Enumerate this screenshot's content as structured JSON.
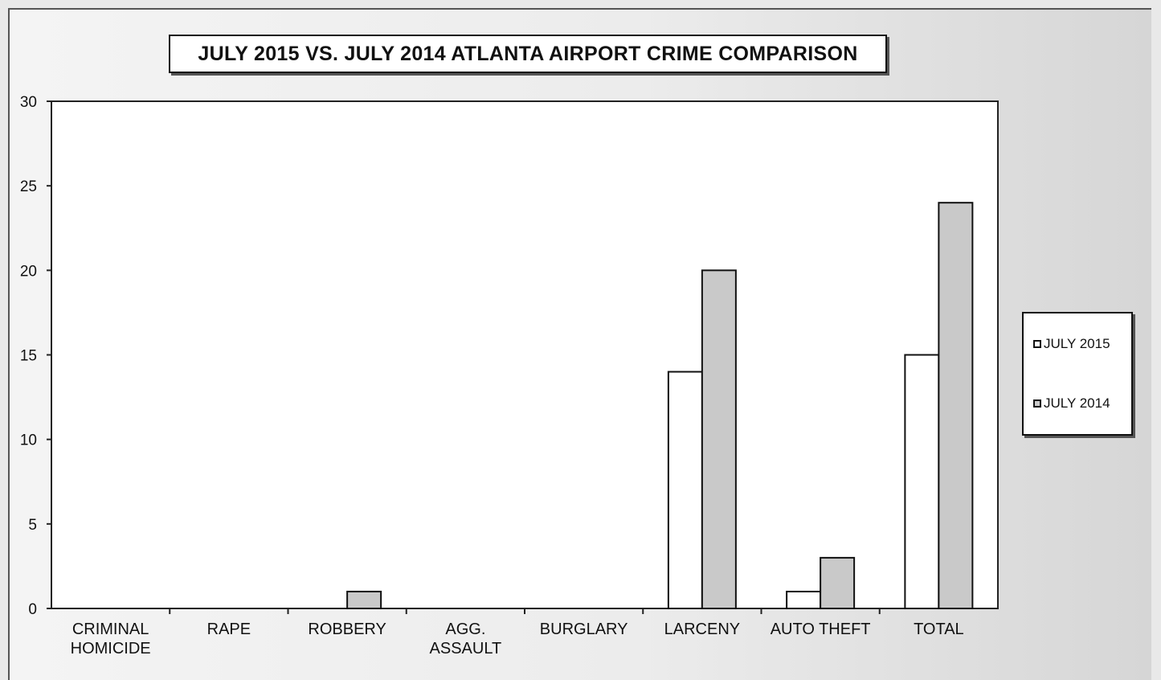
{
  "chart_data": {
    "type": "bar",
    "title": "JULY 2015 VS. JULY 2014 ATLANTA AIRPORT CRIME COMPARISON",
    "categories": [
      [
        "CRIMINAL",
        "HOMICIDE"
      ],
      [
        "RAPE"
      ],
      [
        "ROBBERY"
      ],
      [
        "AGG.",
        "ASSAULT"
      ],
      [
        "BURGLARY"
      ],
      [
        "LARCENY"
      ],
      [
        "AUTO THEFT"
      ],
      [
        "TOTAL"
      ]
    ],
    "series": [
      {
        "name": "JULY 2015",
        "values": [
          0,
          0,
          0,
          0,
          0,
          14,
          1,
          15
        ],
        "color": "#ffffff"
      },
      {
        "name": "JULY 2014",
        "values": [
          0,
          0,
          1,
          0,
          0,
          20,
          3,
          24
        ],
        "color": "#c9c9c9"
      }
    ],
    "ylim": [
      0,
      30
    ],
    "yticks": [
      "0",
      "5",
      "10",
      "15",
      "20",
      "25",
      "30"
    ],
    "grid": false,
    "legend_position": "right"
  }
}
